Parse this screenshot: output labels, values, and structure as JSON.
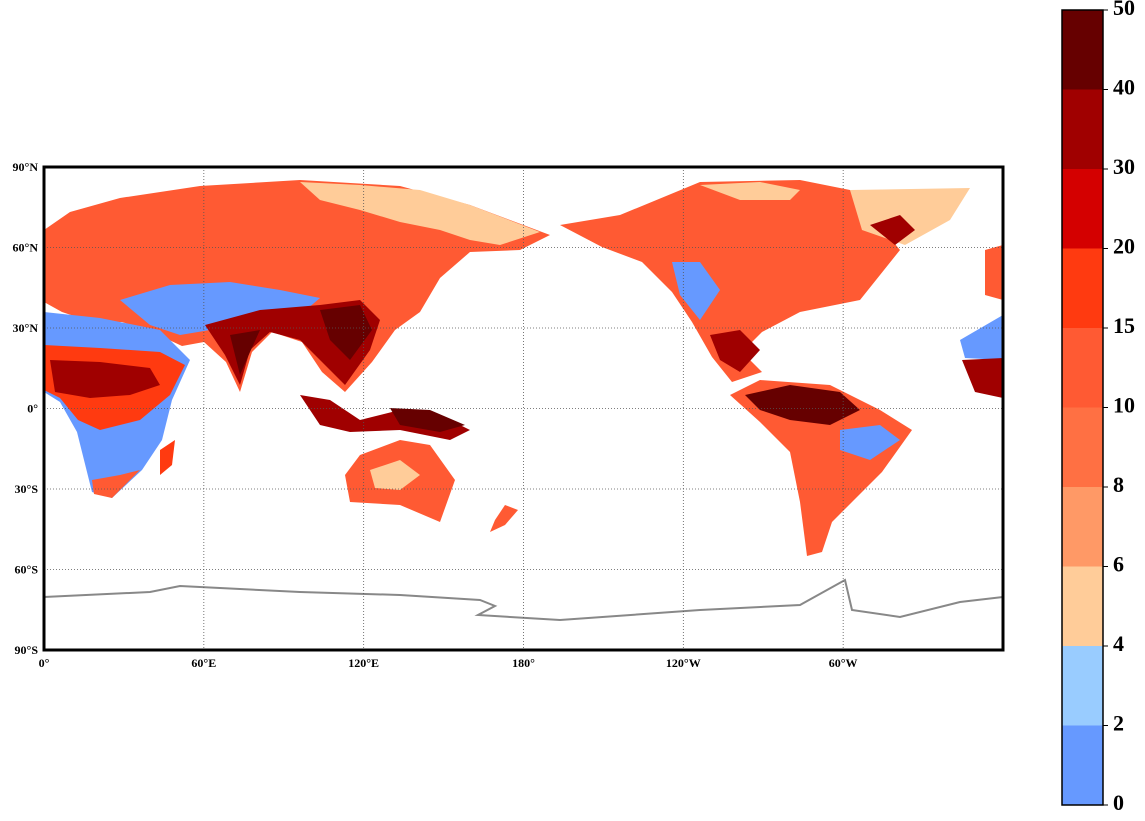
{
  "map": {
    "lon_ticks": [
      {
        "value": 0,
        "label": "0°"
      },
      {
        "value": 60,
        "label": "60°E"
      },
      {
        "value": 120,
        "label": "120°E"
      },
      {
        "value": 180,
        "label": "180°"
      },
      {
        "value": 240,
        "label": "120°W"
      },
      {
        "value": 300,
        "label": "60°W"
      }
    ],
    "lat_ticks": [
      {
        "value": 90,
        "label": "90°N"
      },
      {
        "value": 60,
        "label": "60°N"
      },
      {
        "value": 30,
        "label": "30°N"
      },
      {
        "value": 0,
        "label": "0°"
      },
      {
        "value": -30,
        "label": "30°S"
      },
      {
        "value": -60,
        "label": "60°S"
      },
      {
        "value": -90,
        "label": "90°S"
      }
    ],
    "lonlim": [
      0,
      360
    ],
    "latlim": [
      -90,
      90
    ],
    "grid": true
  },
  "colorbar": {
    "levels": [
      0,
      2,
      4,
      6,
      8,
      10,
      15,
      20,
      30,
      40,
      50
    ],
    "colors": [
      "#6699ff",
      "#99ccff",
      "#ffcc99",
      "#ff9966",
      "#ff7043",
      "#ff5a33",
      "#ff3a10",
      "#d40000",
      "#a00000",
      "#660000"
    ]
  }
}
